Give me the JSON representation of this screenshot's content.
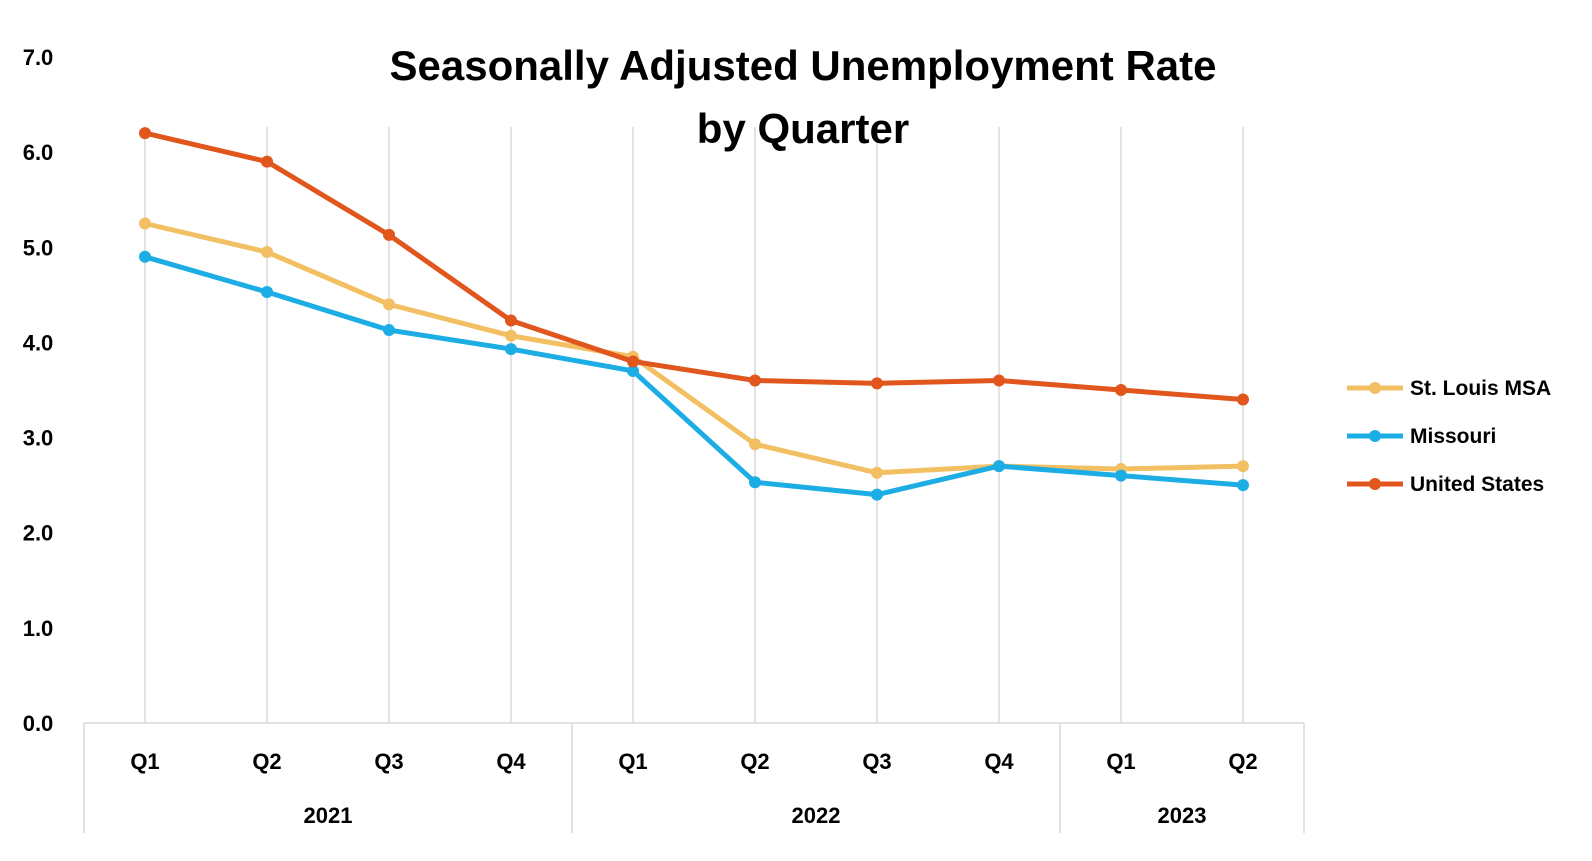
{
  "chart_data": {
    "type": "line",
    "title": [
      "Seasonally Adjusted Unemployment Rate",
      "by Quarter"
    ],
    "xlabel": "",
    "ylabel": "",
    "ylim": [
      0,
      7
    ],
    "yticks": [
      "0.0",
      "1.0",
      "2.0",
      "3.0",
      "4.0",
      "5.0",
      "6.0",
      "7.0"
    ],
    "categories": [
      "Q1",
      "Q2",
      "Q3",
      "Q4",
      "Q1",
      "Q2",
      "Q3",
      "Q4",
      "Q1",
      "Q2"
    ],
    "groups": [
      {
        "label": "2021",
        "count": 4
      },
      {
        "label": "2022",
        "count": 4
      },
      {
        "label": "2023",
        "count": 2
      }
    ],
    "grid": "vertical",
    "legend_position": "right",
    "series": [
      {
        "name": "St. Louis MSA",
        "color": "#F2C063",
        "values": [
          5.25,
          4.95,
          4.4,
          4.07,
          3.85,
          2.93,
          2.63,
          2.7,
          2.67,
          2.7
        ]
      },
      {
        "name": "Missouri",
        "color": "#1BADE3",
        "values": [
          4.9,
          4.53,
          4.13,
          3.93,
          3.7,
          2.53,
          2.4,
          2.7,
          2.6,
          2.5
        ]
      },
      {
        "name": "United States",
        "color": "#E0561C",
        "values": [
          6.2,
          5.9,
          5.13,
          4.23,
          3.8,
          3.6,
          3.57,
          3.6,
          3.5,
          3.4
        ]
      }
    ]
  },
  "colors": {
    "grid": "#D9D9D9",
    "axis": "#D9D9D9",
    "text": "#000000"
  }
}
